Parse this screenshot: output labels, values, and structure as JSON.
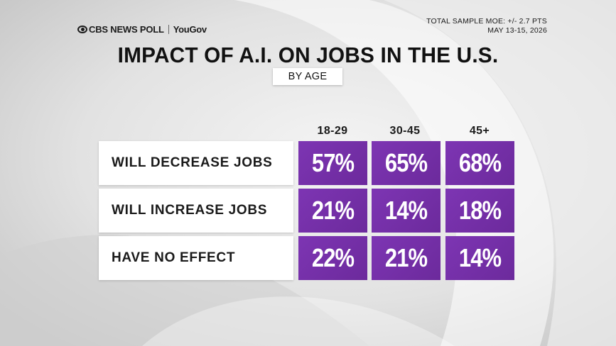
{
  "brand": {
    "network": "CBS NEWS POLL",
    "partner": "YouGov"
  },
  "moe": {
    "line1": "TOTAL SAMPLE MOE: +/- 2.7 PTS",
    "line2": "MAY 13-15, 2026"
  },
  "colors": {
    "cell": "#6c2a9c",
    "label_bg": "#ffffff",
    "text": "#111111",
    "background": "#dcdcdc"
  },
  "chart_data": {
    "type": "table",
    "title": "IMPACT OF A.I. ON JOBS IN THE U.S.",
    "subtitle": "BY AGE",
    "columns": [
      "18-29",
      "30-45",
      "45+"
    ],
    "rows": [
      {
        "label": "WILL DECREASE JOBS",
        "values": [
          57,
          65,
          68
        ],
        "display": [
          "57%",
          "65%",
          "68%"
        ]
      },
      {
        "label": "WILL INCREASE JOBS",
        "values": [
          21,
          14,
          18
        ],
        "display": [
          "21%",
          "14%",
          "18%"
        ]
      },
      {
        "label": "HAVE NO EFFECT",
        "values": [
          22,
          21,
          14
        ],
        "display": [
          "22%",
          "21%",
          "14%"
        ]
      }
    ],
    "unit": "%"
  }
}
